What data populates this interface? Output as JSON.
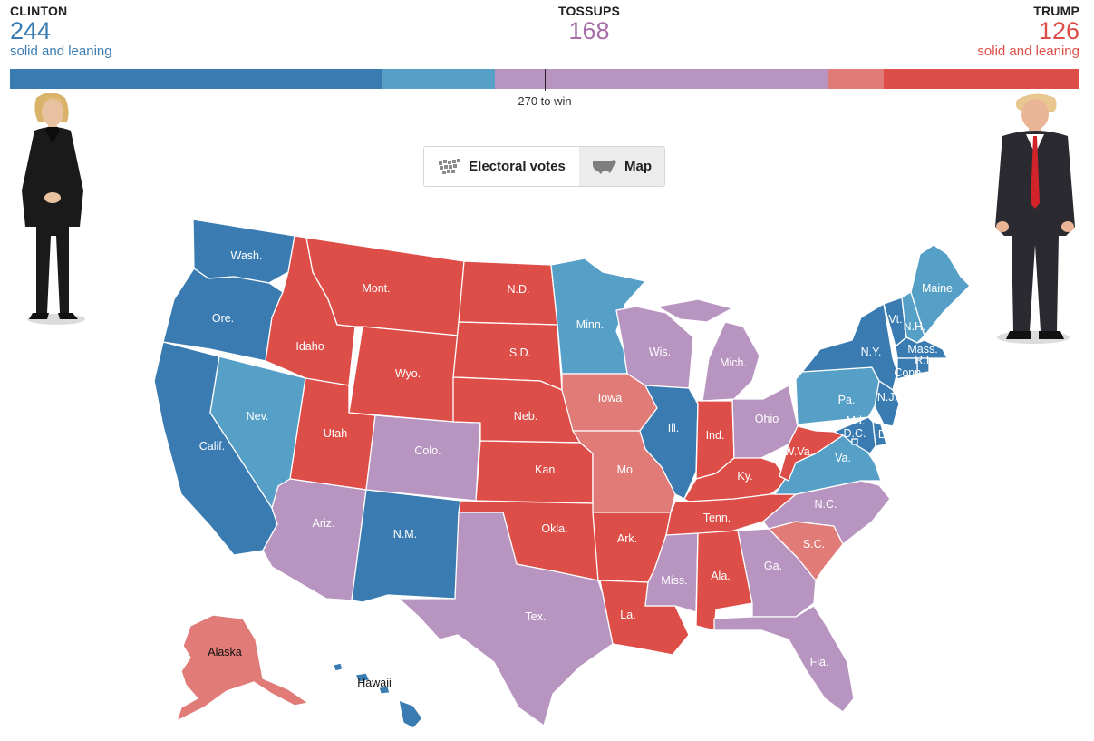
{
  "header": {
    "clinton": {
      "name": "CLINTON",
      "votes": "244",
      "sub": "solid and leaning"
    },
    "tossups": {
      "name": "TOSSUPS",
      "votes": "168"
    },
    "trump": {
      "name": "TRUMP",
      "votes": "126",
      "sub": "solid and leaning"
    },
    "win_label": "270 to win"
  },
  "bar": {
    "total": 538,
    "segments": [
      {
        "key": "clinton-solid",
        "votes": 187,
        "color": "#3a7cb1"
      },
      {
        "key": "clinton-leaning",
        "votes": 57,
        "color": "#56a0c7"
      },
      {
        "key": "tossup",
        "votes": 168,
        "color": "#b894c0"
      },
      {
        "key": "trump-leaning",
        "votes": 28,
        "color": "#e07b78"
      },
      {
        "key": "trump-solid",
        "votes": 98,
        "color": "#dd4e48"
      }
    ],
    "win_threshold": 270
  },
  "toggle": {
    "electoral_votes_label": "Electoral votes",
    "map_label": "Map",
    "selected": "map"
  },
  "colors": {
    "clinton_solid": "#3a7cb1",
    "clinton_leaning": "#56a0c7",
    "tossup": "#b894c0",
    "trump_leaning": "#e07b78",
    "trump_solid": "#dd4e48"
  },
  "states": [
    {
      "id": "wa",
      "label": "Wash.",
      "rating": "clinton_solid"
    },
    {
      "id": "or",
      "label": "Ore.",
      "rating": "clinton_solid"
    },
    {
      "id": "ca",
      "label": "Calif.",
      "rating": "clinton_solid"
    },
    {
      "id": "nv",
      "label": "Nev.",
      "rating": "clinton_leaning"
    },
    {
      "id": "id",
      "label": "Idaho",
      "rating": "trump_solid"
    },
    {
      "id": "mt",
      "label": "Mont.",
      "rating": "trump_solid"
    },
    {
      "id": "wy",
      "label": "Wyo.",
      "rating": "trump_solid"
    },
    {
      "id": "ut",
      "label": "Utah",
      "rating": "trump_solid"
    },
    {
      "id": "az",
      "label": "Ariz.",
      "rating": "tossup"
    },
    {
      "id": "co",
      "label": "Colo.",
      "rating": "tossup"
    },
    {
      "id": "nm",
      "label": "N.M.",
      "rating": "clinton_solid"
    },
    {
      "id": "nd",
      "label": "N.D.",
      "rating": "trump_solid"
    },
    {
      "id": "sd",
      "label": "S.D.",
      "rating": "trump_solid"
    },
    {
      "id": "ne",
      "label": "Neb.",
      "rating": "trump_solid"
    },
    {
      "id": "ks",
      "label": "Kan.",
      "rating": "trump_solid"
    },
    {
      "id": "ok",
      "label": "Okla.",
      "rating": "trump_solid"
    },
    {
      "id": "tx",
      "label": "Tex.",
      "rating": "tossup"
    },
    {
      "id": "mn",
      "label": "Minn.",
      "rating": "clinton_leaning"
    },
    {
      "id": "ia",
      "label": "Iowa",
      "rating": "trump_leaning"
    },
    {
      "id": "mo",
      "label": "Mo.",
      "rating": "trump_leaning"
    },
    {
      "id": "ar",
      "label": "Ark.",
      "rating": "trump_solid"
    },
    {
      "id": "la",
      "label": "La.",
      "rating": "trump_solid"
    },
    {
      "id": "wi",
      "label": "Wis.",
      "rating": "tossup"
    },
    {
      "id": "il",
      "label": "Ill.",
      "rating": "clinton_solid"
    },
    {
      "id": "mi",
      "label": "Mich.",
      "rating": "tossup"
    },
    {
      "id": "in",
      "label": "Ind.",
      "rating": "trump_solid"
    },
    {
      "id": "oh",
      "label": "Ohio",
      "rating": "tossup"
    },
    {
      "id": "ky",
      "label": "Ky.",
      "rating": "trump_solid"
    },
    {
      "id": "tn",
      "label": "Tenn.",
      "rating": "trump_solid"
    },
    {
      "id": "ms",
      "label": "Miss.",
      "rating": "tossup"
    },
    {
      "id": "al",
      "label": "Ala.",
      "rating": "trump_solid"
    },
    {
      "id": "ga",
      "label": "Ga.",
      "rating": "tossup"
    },
    {
      "id": "fl",
      "label": "Fla.",
      "rating": "tossup"
    },
    {
      "id": "sc",
      "label": "S.C.",
      "rating": "trump_leaning"
    },
    {
      "id": "nc",
      "label": "N.C.",
      "rating": "tossup"
    },
    {
      "id": "va",
      "label": "Va.",
      "rating": "clinton_leaning"
    },
    {
      "id": "wv",
      "label": "W.Va.",
      "rating": "trump_solid"
    },
    {
      "id": "pa",
      "label": "Pa.",
      "rating": "clinton_leaning"
    },
    {
      "id": "ny",
      "label": "N.Y.",
      "rating": "clinton_solid"
    },
    {
      "id": "vt",
      "label": "Vt.",
      "rating": "clinton_solid"
    },
    {
      "id": "nh",
      "label": "N.H.",
      "rating": "clinton_leaning"
    },
    {
      "id": "me",
      "label": "Maine",
      "rating": "clinton_leaning"
    },
    {
      "id": "ma",
      "label": "Mass.",
      "rating": "clinton_solid"
    },
    {
      "id": "ri",
      "label": "R.I.",
      "rating": "clinton_solid"
    },
    {
      "id": "ct",
      "label": "Conn.",
      "rating": "clinton_solid"
    },
    {
      "id": "nj",
      "label": "N.J.",
      "rating": "clinton_solid"
    },
    {
      "id": "de",
      "label": "Del.",
      "rating": "clinton_solid"
    },
    {
      "id": "md",
      "label": "Md.",
      "rating": "clinton_solid"
    },
    {
      "id": "dc",
      "label": "D.C.",
      "rating": "clinton_solid"
    },
    {
      "id": "ak",
      "label": "Alaska",
      "rating": "trump_leaning"
    },
    {
      "id": "hi",
      "label": "Hawaii",
      "rating": "clinton_solid"
    }
  ]
}
